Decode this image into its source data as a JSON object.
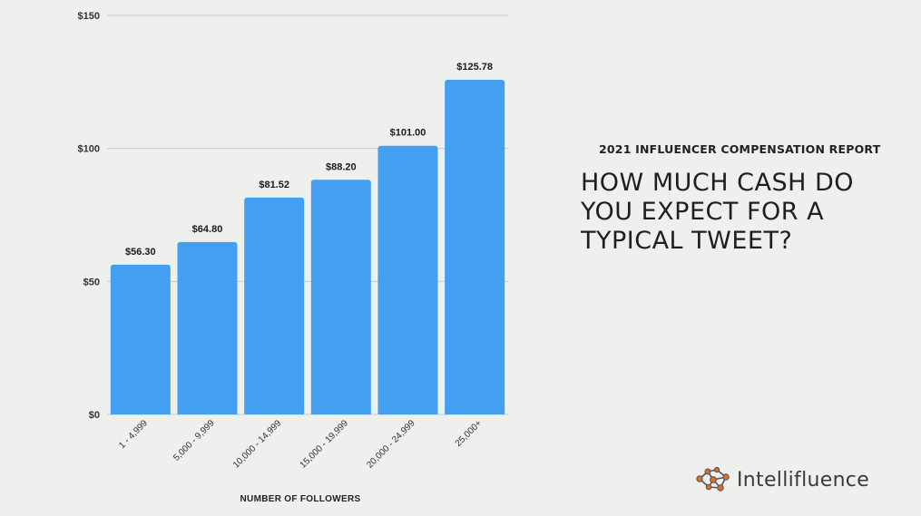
{
  "report": {
    "subtitle": "2021 INFLUENCER COMPENSATION REPORT",
    "title": "HOW MUCH CASH DO YOU EXPECT FOR A TYPICAL TWEET?"
  },
  "brand": {
    "name": "Intellifluence",
    "icon": "network-nodes-icon",
    "colors": {
      "nodes": "#e06b2b",
      "links": "#555555"
    }
  },
  "chart_data": {
    "type": "bar",
    "categories": [
      "1 - 4,999",
      "5,000 - 9,999",
      "10,000 - 14,999",
      "15,000 - 19,999",
      "20,000 - 24,999",
      "25,000+"
    ],
    "values": [
      56.3,
      64.8,
      81.52,
      88.2,
      101.0,
      125.78
    ],
    "value_labels": [
      "$56.30",
      "$64.80",
      "$81.52",
      "$88.20",
      "$101.00",
      "$125.78"
    ],
    "xlabel": "NUMBER OF FOLLOWERS",
    "ylabel": "",
    "ylim": [
      0,
      150
    ],
    "yticks": [
      0,
      50,
      100,
      150
    ],
    "ytick_labels": [
      "$0",
      "$50",
      "$100",
      "$150"
    ],
    "grid": true,
    "bar_color": "#449ff0",
    "grid_color": "#c9cccc"
  }
}
